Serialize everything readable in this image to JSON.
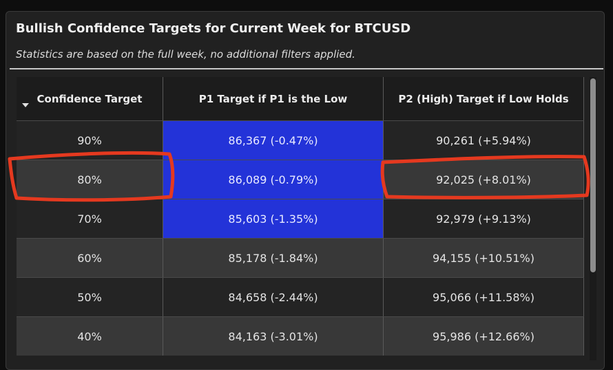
{
  "panel": {
    "title": "Bullish Confidence Targets for Current Week for BTCUSD",
    "subtitle": "Statistics are based on the full week, no additional filters applied."
  },
  "table": {
    "columns": [
      "Confidence Target",
      "P1 Target if P1 is the Low",
      "P2 (High) Target if Low Holds"
    ],
    "rows": [
      [
        "90%",
        "86,367 (-0.47%)",
        "90,261 (+5.94%)"
      ],
      [
        "80%",
        "86,089 (-0.79%)",
        "92,025 (+8.01%)"
      ],
      [
        "70%",
        "85,603 (-1.35%)",
        "92,979 (+9.13%)"
      ],
      [
        "60%",
        "85,178 (-1.84%)",
        "94,155 (+10.51%)"
      ],
      [
        "50%",
        "84,658 (-2.44%)",
        "95,066 (+11.58%)"
      ],
      [
        "40%",
        "84,163 (-3.01%)",
        "95,986 (+12.66%)"
      ]
    ]
  },
  "icons": {
    "sort": "sort-down-icon"
  },
  "colors": {
    "highlight_blue": "#2333d8",
    "annotation_red": "#e5391f"
  }
}
